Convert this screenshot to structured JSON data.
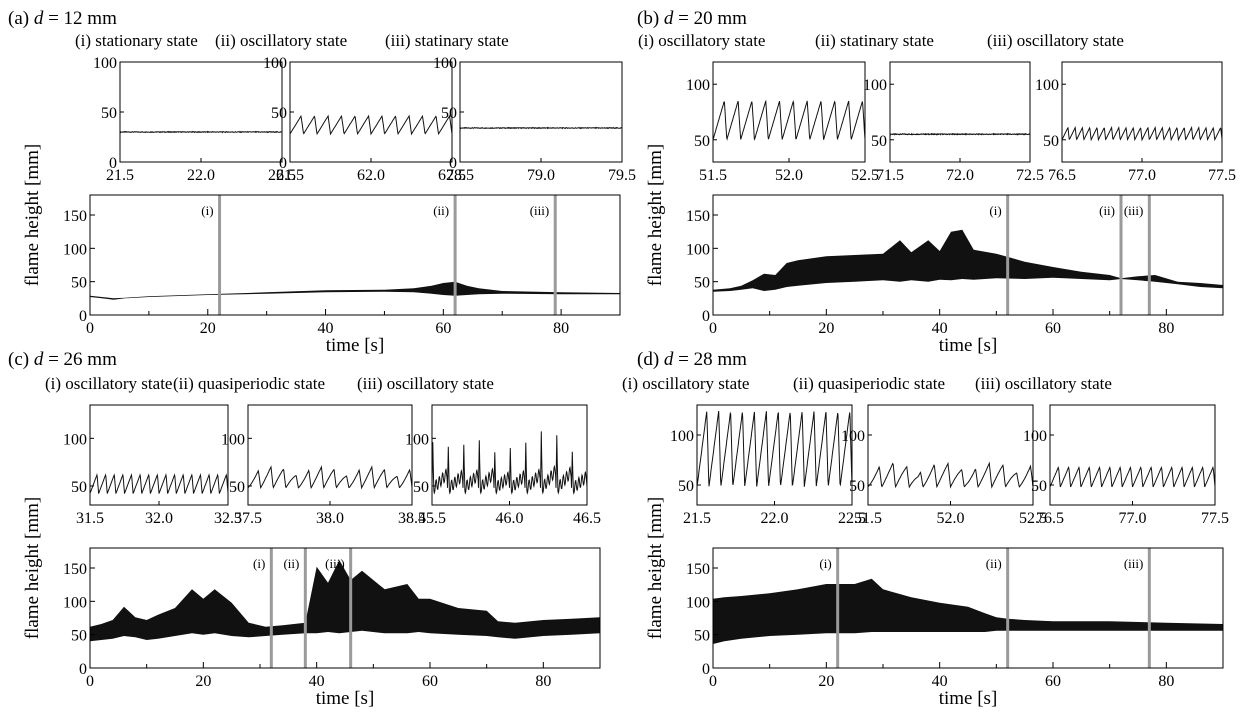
{
  "chart_data": [
    {
      "type": "line",
      "panel_label": "(a)",
      "d_label": "d",
      "d_value": " = 12 mm",
      "insets": [
        {
          "title": "(i) stationary state",
          "xlim": [
            21.5,
            22.5
          ],
          "xticks": [
            "21.5",
            "22.0",
            "22.5"
          ],
          "ylim": [
            0,
            100
          ],
          "yticks": [
            "0",
            "50",
            "100"
          ],
          "mode": "flat",
          "base": 30,
          "amp": 0,
          "cycles": 0
        },
        {
          "title": "(ii) oscillatory state",
          "xlim": [
            61.5,
            62.5
          ],
          "xticks": [
            "61.5",
            "62.0",
            "62.5"
          ],
          "ylim": [
            0,
            100
          ],
          "yticks": [
            "0",
            "50",
            "100"
          ],
          "mode": "saw",
          "base": 28,
          "amp": 18,
          "cycles": 12
        },
        {
          "title": "(iii) statinary state",
          "xlim": [
            78.5,
            79.5
          ],
          "xticks": [
            "78.5",
            "79.0",
            "79.5"
          ],
          "ylim": [
            0,
            100
          ],
          "yticks": [
            "0",
            "50",
            "100"
          ],
          "mode": "flat",
          "base": 34,
          "amp": 0,
          "cycles": 0
        }
      ],
      "main": {
        "xlabel": "time [s]",
        "ylabel": "flame height [mm]",
        "xlim": [
          0,
          90
        ],
        "ylim": [
          0,
          180
        ],
        "xticks": [
          "0",
          "20",
          "40",
          "60",
          "80"
        ],
        "yticks": [
          "0",
          "50",
          "100",
          "150"
        ],
        "markers": [
          {
            "label": "(i)",
            "t": 22
          },
          {
            "label": "(ii)",
            "t": 62
          },
          {
            "label": "(iii)",
            "t": 79
          }
        ],
        "envelope": {
          "t": [
            0,
            2,
            4,
            6,
            10,
            20,
            30,
            40,
            50,
            55,
            58,
            60,
            62,
            64,
            66,
            70,
            80,
            90
          ],
          "upper": [
            29,
            27,
            25,
            26,
            28,
            31,
            34,
            37,
            38,
            40,
            44,
            48,
            50,
            44,
            40,
            36,
            34,
            33
          ],
          "lower": [
            27,
            25,
            23,
            25,
            27,
            30,
            32,
            34,
            35,
            34,
            32,
            30,
            29,
            30,
            31,
            32,
            31,
            31
          ]
        }
      }
    },
    {
      "type": "line",
      "panel_label": "(b)",
      "d_label": "d",
      "d_value": " = 20 mm",
      "insets": [
        {
          "title": "(i) oscillatory state",
          "xlim": [
            51.5,
            52.5
          ],
          "xticks": [
            "51.5",
            "52.0",
            "52.5"
          ],
          "ylim": [
            30,
            120
          ],
          "yticks": [
            "50",
            "100"
          ],
          "mode": "saw",
          "base": 50,
          "amp": 35,
          "cycles": 11
        },
        {
          "title": "(ii) statinary state",
          "xlim": [
            71.5,
            72.5
          ],
          "xticks": [
            "71.5",
            "72.0",
            "72.5"
          ],
          "ylim": [
            30,
            120
          ],
          "yticks": [
            "50",
            "100"
          ],
          "mode": "flat",
          "base": 55,
          "amp": 0,
          "cycles": 0
        },
        {
          "title": "(iii) oscillatory state",
          "xlim": [
            76.5,
            77.5
          ],
          "xticks": [
            "76.5",
            "77.0",
            "77.5"
          ],
          "ylim": [
            30,
            120
          ],
          "yticks": [
            "50",
            "100"
          ],
          "mode": "saw",
          "base": 50,
          "amp": 11,
          "cycles": 22
        }
      ],
      "main": {
        "xlabel": "time [s]",
        "ylabel": "flame height [mm]",
        "xlim": [
          0,
          90
        ],
        "ylim": [
          0,
          180
        ],
        "xticks": [
          "0",
          "20",
          "40",
          "60",
          "80"
        ],
        "yticks": [
          "0",
          "50",
          "100",
          "150"
        ],
        "markers": [
          {
            "label": "(i)",
            "t": 52
          },
          {
            "label": "(ii)",
            "t": 72
          },
          {
            "label": "(iii)",
            "t": 77
          }
        ],
        "envelope": {
          "t": [
            0,
            3,
            5,
            7,
            9,
            11,
            13,
            15,
            20,
            25,
            30,
            33,
            35,
            38,
            40,
            42,
            44,
            46,
            50,
            55,
            60,
            65,
            70,
            72,
            75,
            78,
            82,
            86,
            90
          ],
          "upper": [
            38,
            40,
            44,
            52,
            62,
            60,
            78,
            82,
            88,
            90,
            92,
            112,
            94,
            112,
            96,
            125,
            128,
            98,
            92,
            80,
            72,
            65,
            60,
            55,
            58,
            60,
            50,
            48,
            45
          ],
          "lower": [
            35,
            36,
            38,
            40,
            36,
            38,
            42,
            44,
            48,
            50,
            52,
            50,
            52,
            50,
            53,
            52,
            54,
            53,
            55,
            54,
            56,
            54,
            52,
            54,
            52,
            50,
            46,
            42,
            40
          ]
        }
      }
    },
    {
      "type": "line",
      "panel_label": "(c)",
      "d_label": "d",
      "d_value": " = 26 mm",
      "insets": [
        {
          "title": "(i) oscillatory state",
          "xlim": [
            31.5,
            32.5
          ],
          "xticks": [
            "31.5",
            "32.0",
            "32.5"
          ],
          "ylim": [
            30,
            135
          ],
          "yticks": [
            "50",
            "100"
          ],
          "mode": "saw",
          "base": 42,
          "amp": 20,
          "cycles": 16
        },
        {
          "title": "(ii) quasiperiodic state",
          "xlim": [
            37.5,
            38.5
          ],
          "xticks": [
            "37.5",
            "38.0",
            "38.5"
          ],
          "ylim": [
            30,
            135
          ],
          "yticks": [
            "50",
            "100"
          ],
          "mode": "quasi",
          "base": 48,
          "amp": 22,
          "cycles": 13
        },
        {
          "title": "(iii) oscillatory state",
          "xlim": [
            45.5,
            46.5
          ],
          "xticks": [
            "45.5",
            "46.0",
            "46.5"
          ],
          "ylim": [
            30,
            135
          ],
          "yticks": [
            "50",
            "100"
          ],
          "mode": "spike",
          "base": 48,
          "amp": 72,
          "cycles": 10
        }
      ],
      "main": {
        "xlabel": "time [s]",
        "ylabel": "flame height [mm]",
        "xlim": [
          0,
          90
        ],
        "ylim": [
          0,
          180
        ],
        "xticks": [
          "0",
          "20",
          "40",
          "60",
          "80"
        ],
        "yticks": [
          "0",
          "50",
          "100",
          "150"
        ],
        "markers": [
          {
            "label": "(i)",
            "t": 32
          },
          {
            "label": "(ii)",
            "t": 38
          },
          {
            "label": "(iii)",
            "t": 46
          }
        ],
        "envelope": {
          "t": [
            0,
            2,
            4,
            6,
            8,
            10,
            12,
            15,
            18,
            20,
            22,
            25,
            28,
            31,
            34,
            38,
            40,
            42,
            44,
            46,
            48,
            52,
            56,
            58,
            60,
            65,
            70,
            72,
            75,
            80,
            85,
            90
          ],
          "upper": [
            62,
            66,
            72,
            92,
            76,
            72,
            80,
            90,
            118,
            104,
            118,
            98,
            68,
            62,
            64,
            68,
            152,
            128,
            162,
            132,
            146,
            118,
            126,
            104,
            104,
            90,
            86,
            70,
            68,
            72,
            74,
            76
          ],
          "lower": [
            40,
            42,
            44,
            48,
            46,
            42,
            44,
            48,
            52,
            50,
            52,
            48,
            46,
            48,
            50,
            52,
            52,
            54,
            52,
            54,
            56,
            52,
            52,
            54,
            52,
            50,
            48,
            46,
            44,
            48,
            50,
            52
          ]
        }
      }
    },
    {
      "type": "line",
      "panel_label": "(d)",
      "d_label": "d",
      "d_value": " = 28 mm",
      "insets": [
        {
          "title": "(i) oscillatory state",
          "xlim": [
            21.5,
            22.5
          ],
          "xticks": [
            "21.5",
            "22.0",
            "22.5"
          ],
          "ylim": [
            30,
            130
          ],
          "yticks": [
            "50",
            "100"
          ],
          "mode": "saw",
          "base": 48,
          "amp": 76,
          "cycles": 13
        },
        {
          "title": "(ii) quasiperiodic state",
          "xlim": [
            51.5,
            52.5
          ],
          "xticks": [
            "51.5",
            "52.0",
            "52.5"
          ],
          "ylim": [
            30,
            130
          ],
          "yticks": [
            "50",
            "100"
          ],
          "mode": "quasi",
          "base": 48,
          "amp": 24,
          "cycles": 12
        },
        {
          "title": "(iii) oscillatory state",
          "xlim": [
            76.5,
            77.5
          ],
          "xticks": [
            "76.5",
            "77.0",
            "77.5"
          ],
          "ylim": [
            30,
            130
          ],
          "yticks": [
            "50",
            "100"
          ],
          "mode": "saw",
          "base": 48,
          "amp": 20,
          "cycles": 16
        }
      ],
      "main": {
        "xlabel": "time [s]",
        "ylabel": "flame height [mm]",
        "xlim": [
          0,
          90
        ],
        "ylim": [
          0,
          180
        ],
        "xticks": [
          "0",
          "20",
          "40",
          "60",
          "80"
        ],
        "yticks": [
          "0",
          "50",
          "100",
          "150"
        ],
        "markers": [
          {
            "label": "(i)",
            "t": 22
          },
          {
            "label": "(ii)",
            "t": 52
          },
          {
            "label": "(iii)",
            "t": 77
          }
        ],
        "envelope": {
          "t": [
            0,
            2,
            5,
            10,
            15,
            20,
            25,
            28,
            30,
            35,
            40,
            45,
            48,
            50,
            52,
            55,
            60,
            70,
            80,
            90
          ],
          "upper": [
            104,
            106,
            108,
            112,
            118,
            126,
            126,
            134,
            118,
            106,
            98,
            92,
            82,
            76,
            74,
            72,
            70,
            70,
            68,
            66
          ],
          "lower": [
            36,
            40,
            44,
            48,
            50,
            52,
            52,
            54,
            54,
            54,
            54,
            54,
            54,
            56,
            56,
            56,
            56,
            56,
            56,
            56
          ]
        }
      }
    }
  ]
}
